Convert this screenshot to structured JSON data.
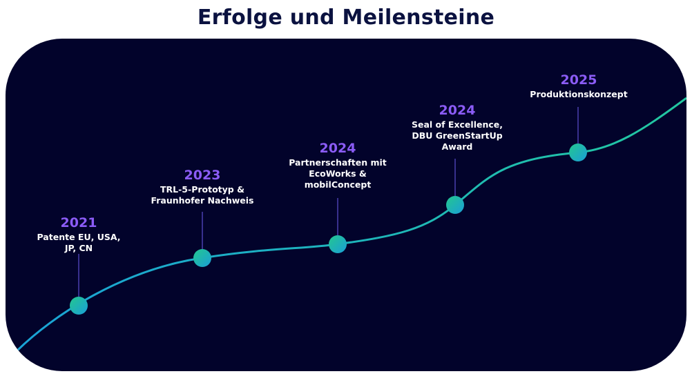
{
  "title": "Erfolge und Meilensteine",
  "colors": {
    "background": "#02032b",
    "year": "#8b5cf6",
    "line_start": "#1aa3d6",
    "line_end": "#22c7a0"
  },
  "milestones": [
    {
      "year": "2021",
      "text": "Patente EU, USA,\nJP, CN"
    },
    {
      "year": "2023",
      "text": "TRL-5-Prototyp &\nFraunhofer Nachweis"
    },
    {
      "year": "2024",
      "text": "Partnerschaften mit\nEcoWorks &\nmobilConcept"
    },
    {
      "year": "2024",
      "text": "Seal of Excellence,\nDBU GreenStartUp\nAward"
    },
    {
      "year": "2025",
      "text": "Produktionskonzept"
    }
  ]
}
